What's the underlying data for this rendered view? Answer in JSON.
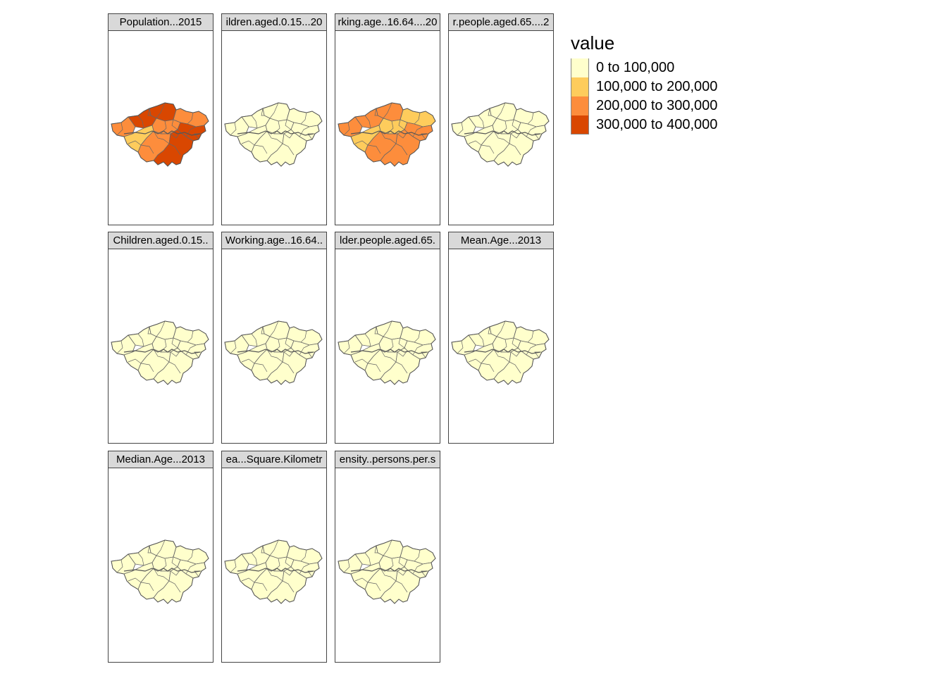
{
  "legend": {
    "title": "value",
    "classes": [
      {
        "label": "0 to 100,000",
        "color": "#ffffcc"
      },
      {
        "label": "100,000 to 200,000",
        "color": "#fecc5c"
      },
      {
        "label": "200,000 to 300,000",
        "color": "#fd8d3c"
      },
      {
        "label": "300,000 to 400,000",
        "color": "#e34a33"
      }
    ]
  },
  "panels": [
    {
      "title": "Population...2015",
      "scheme": "population"
    },
    {
      "title": "ildren.aged.0.15...20",
      "scheme": "low"
    },
    {
      "title": "rking.age..16.64....20",
      "scheme": "working"
    },
    {
      "title": "r.people.aged.65....2",
      "scheme": "low"
    },
    {
      "title": "Children.aged.0.15..",
      "scheme": "low"
    },
    {
      "title": "Working.age..16.64..",
      "scheme": "low"
    },
    {
      "title": "lder.people.aged.65.",
      "scheme": "low"
    },
    {
      "title": "Mean.Age...2013",
      "scheme": "low"
    },
    {
      "title": "Median.Age...2013",
      "scheme": "low"
    },
    {
      "title": "ea...Square.Kilometr",
      "scheme": "low"
    },
    {
      "title": "ensity..persons.per.s",
      "scheme": "low"
    }
  ]
}
